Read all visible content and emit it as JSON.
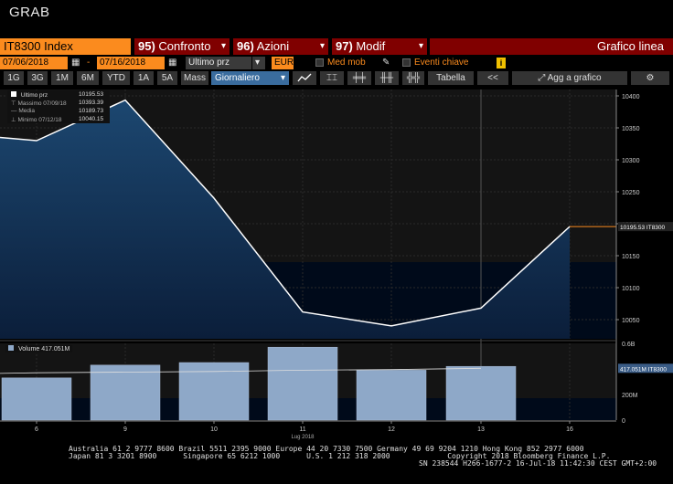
{
  "header": {
    "grab": "GRAB"
  },
  "commandbar": {
    "ticker": "IT8300 Index",
    "buttons": [
      {
        "num": "95)",
        "label": "Confronto"
      },
      {
        "num": "96)",
        "label": "Azioni"
      },
      {
        "num": "97)",
        "label": "Modif"
      }
    ],
    "title": "Grafico linea"
  },
  "controls": {
    "start_date": "07/06/2018",
    "separator": "-",
    "end_date": "07/16/2018",
    "field": "Ultimo prz",
    "currency": "EUR",
    "moving_avg": "Med mob",
    "events": "Eventi chiave",
    "info": "i"
  },
  "toolbar": {
    "ranges": [
      "1G",
      "3G",
      "1M",
      "6M",
      "YTD",
      "1A",
      "5A",
      "Mass"
    ],
    "frequency": "Giornaliero",
    "table": "Tabella",
    "add_chart": "Agg a grafico",
    "back": "<<",
    "settings": "⚙"
  },
  "legend": {
    "last": {
      "label": "Ultimo prz",
      "value": "10195.53"
    },
    "max": {
      "label": "Massimo 07/09/18",
      "value": "10393.39"
    },
    "avg": {
      "label": "Media",
      "value": "10189.73"
    },
    "min": {
      "label": "Minimo 07/12/18",
      "value": "10040.15"
    }
  },
  "volume_legend": "Volume 417.051M",
  "last_price_tag": "10195.53 IT8300",
  "volume_tag": "417.051M IT8300",
  "chart_data": [
    {
      "type": "area",
      "x": [
        "07/06/18",
        "07/09/18",
        "07/10/18",
        "07/11/18",
        "07/12/18",
        "07/13/18",
        "07/16/18"
      ],
      "series": [
        {
          "name": "Ultimo prz",
          "values": [
            10330,
            10393.39,
            10240,
            10062,
            10040.15,
            10068,
            10195.53
          ]
        }
      ],
      "pre_start_value": 10335,
      "ylim": [
        10020,
        10410
      ],
      "yticks": [
        10050,
        10100,
        10150,
        10200,
        10250,
        10300,
        10350,
        10400
      ],
      "xtick_labels": [
        "6",
        "9",
        "10",
        "11",
        "12",
        "13",
        "16"
      ],
      "xaxis_sublabel": "Lug 2018"
    },
    {
      "type": "bar",
      "x": [
        "07/06/18",
        "07/09/18",
        "07/10/18",
        "07/11/18",
        "07/12/18",
        "07/13/18"
      ],
      "series": [
        {
          "name": "Volume",
          "values": [
            330,
            430,
            450,
            570,
            390,
            420
          ]
        }
      ],
      "moving_avg": [
        370,
        375,
        380,
        390,
        395,
        405
      ],
      "ylim": [
        0,
        600
      ],
      "yticks": [
        "0",
        "200M",
        "0.6B"
      ]
    }
  ],
  "footer": {
    "line1": "Australia 61 2 9777 8600 Brazil 5511 2395 9000 Europe 44 20 7330 7500 Germany 49 69 9204 1210 Hong Kong 852 2977 6000",
    "line2": "Japan 81 3 3201 8900      Singapore 65 6212 1000      U.S. 1 212 318 2000             Copyright 2018 Bloomberg Finance L.P.",
    "line3": "SN 238544 H266-1677-2 16-Jul-18 11:42:30 CEST GMT+2:00"
  }
}
